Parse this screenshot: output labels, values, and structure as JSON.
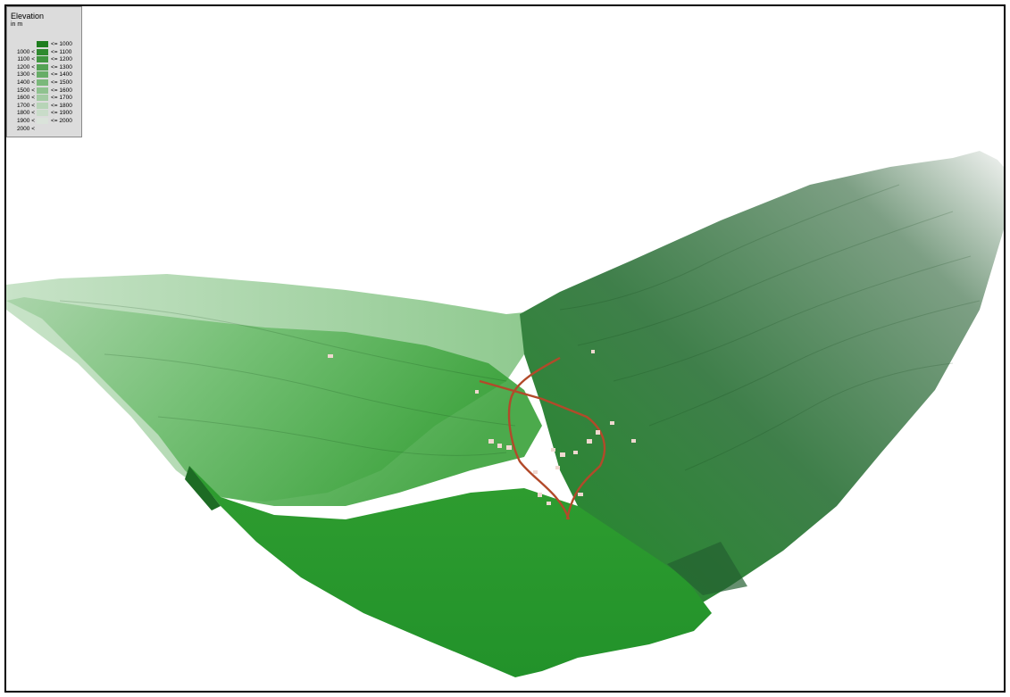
{
  "legend": {
    "title": "Elevation",
    "unit": "in m",
    "classes": [
      {
        "lo": "",
        "hi": "<= 1000",
        "color": "#1e7d1e"
      },
      {
        "lo": "1000 <",
        "hi": "<= 1100",
        "color": "#2f8a2f"
      },
      {
        "lo": "1100 <",
        "hi": "<= 1200",
        "color": "#419641"
      },
      {
        "lo": "1200 <",
        "hi": "<= 1300",
        "color": "#54a254"
      },
      {
        "lo": "1300 <",
        "hi": "<= 1400",
        "color": "#67ad67"
      },
      {
        "lo": "1400 <",
        "hi": "<= 1500",
        "color": "#7bb87b"
      },
      {
        "lo": "1500 <",
        "hi": "<= 1600",
        "color": "#8fc28f"
      },
      {
        "lo": "1600 <",
        "hi": "<= 1700",
        "color": "#a3cba3"
      },
      {
        "lo": "1700 <",
        "hi": "<= 1800",
        "color": "#b7d4b7"
      },
      {
        "lo": "1800 <",
        "hi": "<= 1900",
        "color": "#c9dcc9"
      },
      {
        "lo": "1900 <",
        "hi": "<= 2000",
        "color": "#dae3da"
      },
      {
        "lo": "2000 <",
        "hi": "",
        "color": "#e8e8e8"
      }
    ]
  },
  "colors": {
    "valley_floor": "#2e9a2e",
    "slope_left": "#7fc07f",
    "slope_right_dark": "#3f6f45",
    "summit": "#e4e8e4",
    "road": "#b24a2a",
    "buildings": "#f0d8d0"
  }
}
